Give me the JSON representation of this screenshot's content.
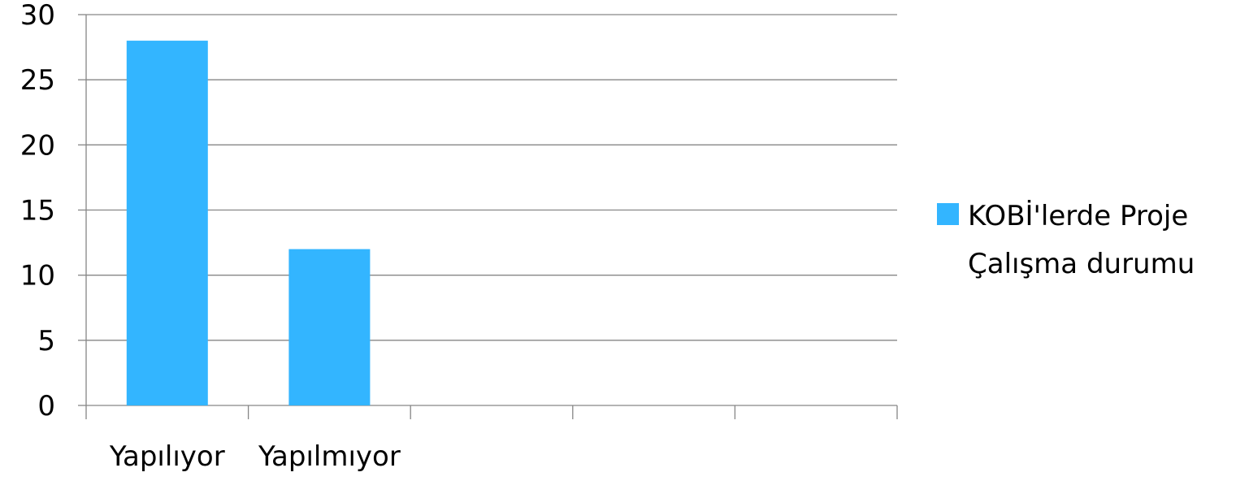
{
  "chart_data": {
    "type": "bar",
    "title": "",
    "xlabel": "",
    "ylabel": "",
    "categories": [
      "Yapılıyor",
      "Yapılmıyor",
      "",
      "",
      ""
    ],
    "series": [
      {
        "name": "KOBİ'lerde Proje Çalışma durumu",
        "name_lines": [
          "KOBİ'lerde Proje",
          "Çalışma durumu"
        ],
        "values": [
          28,
          12,
          null,
          null,
          null
        ],
        "color": "#33B5FF"
      }
    ],
    "ylim": [
      0,
      30
    ],
    "yticks": [
      0,
      5,
      10,
      15,
      20,
      25,
      30
    ],
    "grid": true,
    "legend": "right"
  }
}
